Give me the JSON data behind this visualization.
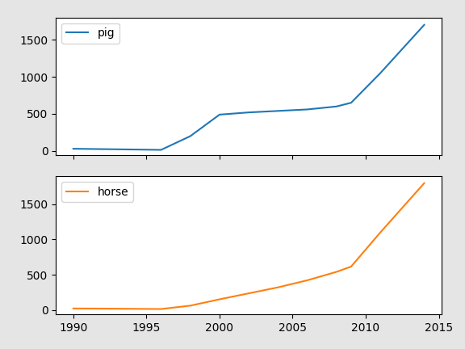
{
  "years": [
    1990,
    1992,
    1994,
    1996,
    1998,
    2000,
    2002,
    2004,
    2006,
    2008,
    2009,
    2011,
    2014
  ],
  "pig": [
    30,
    25,
    20,
    15,
    200,
    490,
    520,
    540,
    560,
    600,
    650,
    1050,
    1700
  ],
  "horse": [
    20,
    18,
    15,
    12,
    60,
    150,
    235,
    320,
    420,
    540,
    615,
    1100,
    1800
  ],
  "pig_color": "#1f77b4",
  "horse_color": "#ff7f0e",
  "pig_label": "pig",
  "horse_label": "horse",
  "xlim": [
    1988.8,
    2015.2
  ],
  "pig_ylim": [
    -60,
    1800
  ],
  "horse_ylim": [
    -60,
    1900
  ],
  "xticks": [
    1990,
    1995,
    2000,
    2005,
    2010,
    2015
  ],
  "pig_yticks": [
    0,
    500,
    1000,
    1500
  ],
  "horse_yticks": [
    0,
    500,
    1000,
    1500
  ],
  "fig_facecolor": "#e5e5e5",
  "ax_facecolor": "#ffffff"
}
